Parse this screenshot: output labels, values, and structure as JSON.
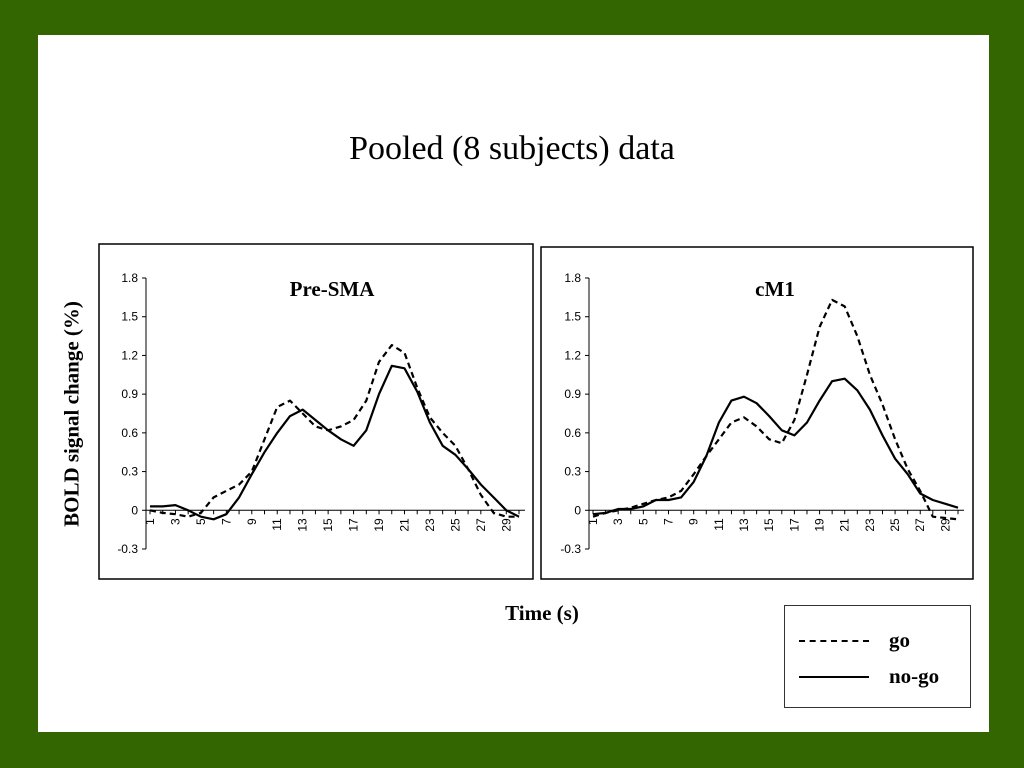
{
  "title": "Pooled (8 subjects) data",
  "ylabel": "BOLD signal change (%)",
  "xlabel": "Time (s)",
  "legend": {
    "go": "go",
    "nogo": "no-go"
  },
  "chart_data": [
    {
      "type": "line",
      "title": "Pre-SMA",
      "x": [
        1,
        2,
        3,
        4,
        5,
        6,
        7,
        8,
        9,
        10,
        11,
        12,
        13,
        14,
        15,
        16,
        17,
        18,
        19,
        20,
        21,
        22,
        23,
        24,
        25,
        26,
        27,
        28,
        29,
        30
      ],
      "x_tick_labels": [
        "1",
        "3",
        "5",
        "7",
        "9",
        "11",
        "13",
        "15",
        "17",
        "19",
        "21",
        "23",
        "25",
        "27",
        "29"
      ],
      "ylim": [
        -0.3,
        1.8
      ],
      "y_ticks": [
        "1.8",
        "1.5",
        "1.2",
        "0.9",
        "0.6",
        "0.3",
        "0",
        "-0.3"
      ],
      "series": [
        {
          "name": "go",
          "style": "dashed",
          "values": [
            0.0,
            -0.02,
            -0.03,
            -0.05,
            -0.02,
            0.1,
            0.15,
            0.2,
            0.3,
            0.55,
            0.8,
            0.85,
            0.75,
            0.65,
            0.62,
            0.65,
            0.7,
            0.85,
            1.15,
            1.28,
            1.22,
            0.95,
            0.72,
            0.6,
            0.5,
            0.32,
            0.12,
            -0.02,
            -0.05,
            -0.05
          ]
        },
        {
          "name": "no-go",
          "style": "solid",
          "values": [
            0.03,
            0.03,
            0.04,
            0.0,
            -0.05,
            -0.07,
            -0.03,
            0.1,
            0.28,
            0.45,
            0.6,
            0.73,
            0.78,
            0.7,
            0.62,
            0.55,
            0.5,
            0.62,
            0.9,
            1.12,
            1.1,
            0.92,
            0.68,
            0.5,
            0.43,
            0.32,
            0.2,
            0.1,
            0.0,
            -0.05
          ]
        }
      ]
    },
    {
      "type": "line",
      "title": "cM1",
      "x": [
        1,
        2,
        3,
        4,
        5,
        6,
        7,
        8,
        9,
        10,
        11,
        12,
        13,
        14,
        15,
        16,
        17,
        18,
        19,
        20,
        21,
        22,
        23,
        24,
        25,
        26,
        27,
        28,
        29,
        30
      ],
      "x_tick_labels": [
        "1",
        "3",
        "5",
        "7",
        "9",
        "11",
        "13",
        "15",
        "17",
        "19",
        "21",
        "23",
        "25",
        "27",
        "29"
      ],
      "ylim": [
        -0.3,
        1.8
      ],
      "y_ticks": [
        "1.8",
        "1.5",
        "1.2",
        "0.9",
        "0.6",
        "0.3",
        "0",
        "-0.3"
      ],
      "series": [
        {
          "name": "go",
          "style": "dashed",
          "values": [
            -0.05,
            -0.02,
            0.0,
            0.02,
            0.05,
            0.08,
            0.1,
            0.15,
            0.28,
            0.42,
            0.55,
            0.68,
            0.72,
            0.65,
            0.55,
            0.52,
            0.7,
            1.05,
            1.42,
            1.63,
            1.58,
            1.35,
            1.05,
            0.82,
            0.55,
            0.32,
            0.15,
            -0.05,
            -0.06,
            -0.07
          ]
        },
        {
          "name": "no-go",
          "style": "solid",
          "values": [
            -0.03,
            -0.02,
            0.01,
            0.01,
            0.03,
            0.08,
            0.08,
            0.1,
            0.22,
            0.42,
            0.68,
            0.85,
            0.88,
            0.83,
            0.73,
            0.62,
            0.58,
            0.68,
            0.85,
            1.0,
            1.02,
            0.93,
            0.78,
            0.58,
            0.4,
            0.28,
            0.13,
            0.08,
            0.05,
            0.02
          ]
        }
      ]
    }
  ]
}
